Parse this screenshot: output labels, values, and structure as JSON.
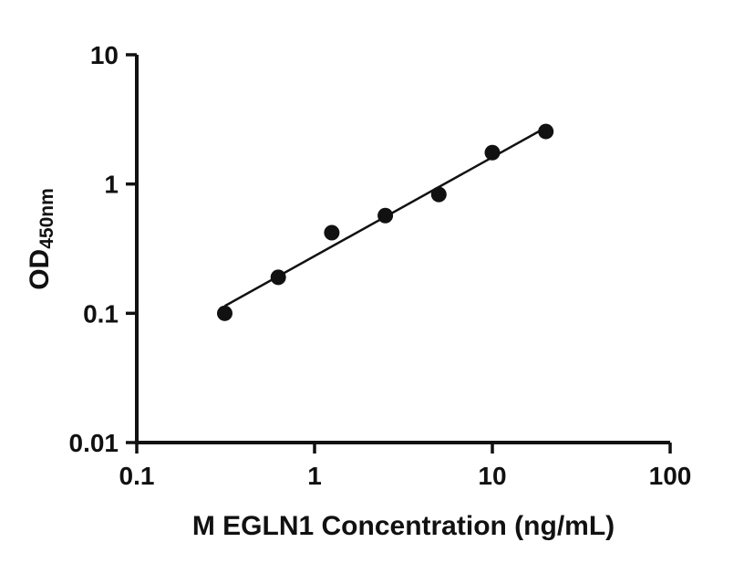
{
  "chart_data": {
    "type": "scatter",
    "title": "",
    "xlabel": "M EGLN1 Concentration (ng/mL)",
    "ylabel_main": "OD",
    "ylabel_sub": "450nm",
    "xscale": "log",
    "yscale": "log",
    "xlim": [
      0.1,
      100
    ],
    "ylim": [
      0.01,
      10
    ],
    "x": [
      0.3125,
      0.625,
      1.25,
      2.5,
      5,
      10,
      20
    ],
    "y": [
      0.1,
      0.19,
      0.42,
      0.57,
      0.83,
      1.75,
      2.55
    ],
    "x_ticks": [
      {
        "value": 0.1,
        "label": "0.1"
      },
      {
        "value": 1,
        "label": "1"
      },
      {
        "value": 10,
        "label": "10"
      },
      {
        "value": 100,
        "label": "100"
      }
    ],
    "y_ticks": [
      {
        "value": 0.01,
        "label": "0.01"
      },
      {
        "value": 0.1,
        "label": "0.1"
      },
      {
        "value": 1,
        "label": "1"
      },
      {
        "value": 10,
        "label": "10"
      }
    ],
    "fit_line": "straight line in log-log space through data points (power-law standard curve)",
    "grid": false,
    "legend": null,
    "marker_color": "#111111",
    "line_color": "#111111",
    "axis_color": "#111111",
    "background_color": "#ffffff"
  }
}
